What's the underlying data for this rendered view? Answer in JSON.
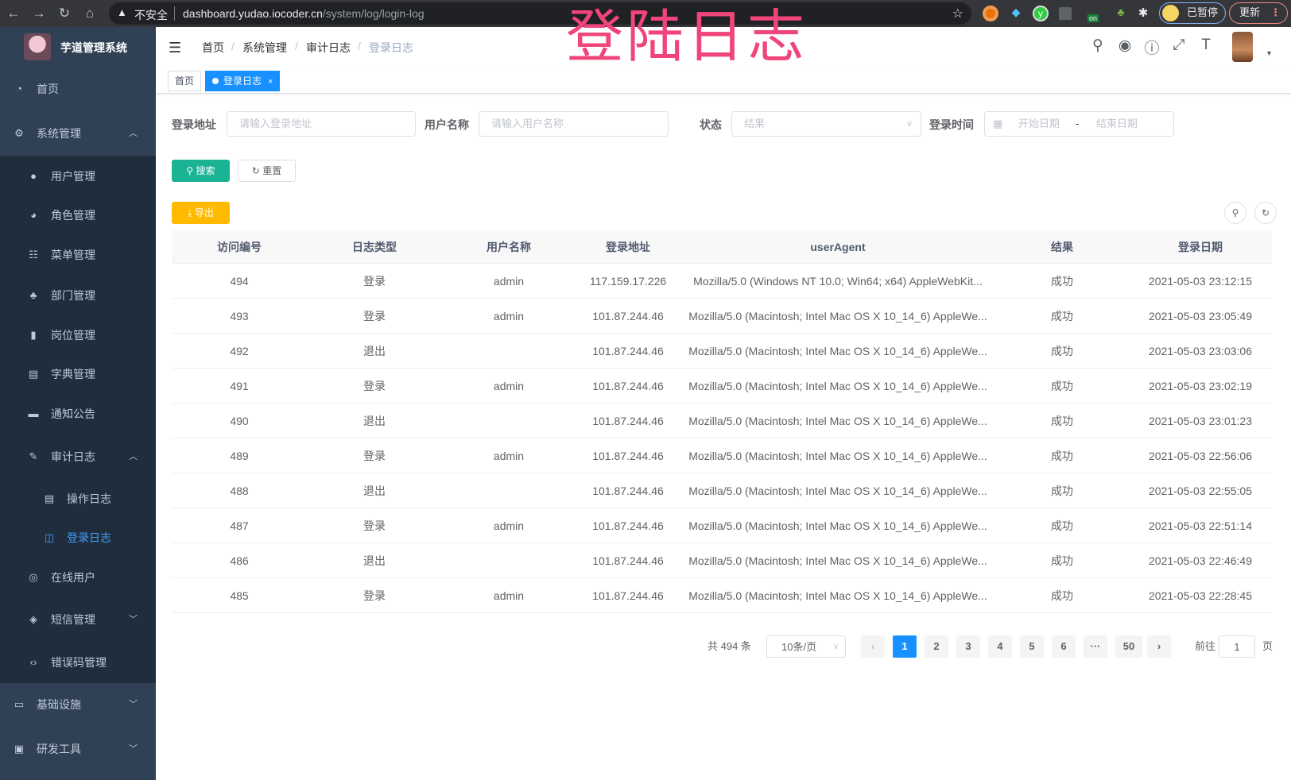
{
  "browser": {
    "insecure_label": "不安全",
    "url_host": "dashboard.yudao.iocoder.cn",
    "url_path": "/system/log/login-log",
    "profile_label": "已暂停",
    "update_label": "更新",
    "ext_badge": "on"
  },
  "sidebar": {
    "brand": "芋道管理系统",
    "items": [
      {
        "label": "首页",
        "icon": "dashboard-icon"
      },
      {
        "label": "系统管理",
        "icon": "gear-icon",
        "expanded": true
      },
      {
        "label": "用户管理",
        "icon": "user-icon"
      },
      {
        "label": "角色管理",
        "icon": "peoples-icon"
      },
      {
        "label": "菜单管理",
        "icon": "tree-table-icon"
      },
      {
        "label": "部门管理",
        "icon": "tree-icon"
      },
      {
        "label": "岗位管理",
        "icon": "post-icon"
      },
      {
        "label": "字典管理",
        "icon": "dict-icon"
      },
      {
        "label": "通知公告",
        "icon": "message-icon"
      },
      {
        "label": "审计日志",
        "icon": "log-icon",
        "expanded": true
      },
      {
        "label": "操作日志",
        "icon": "form-icon"
      },
      {
        "label": "登录日志",
        "icon": "logininfor-icon",
        "active": true
      },
      {
        "label": "在线用户",
        "icon": "online-icon"
      },
      {
        "label": "短信管理",
        "icon": "validcode-icon",
        "expanded": false
      },
      {
        "label": "错误码管理",
        "icon": "code-icon"
      },
      {
        "label": "基础设施",
        "icon": "monitor-icon",
        "expanded": false
      },
      {
        "label": "研发工具",
        "icon": "tool-icon",
        "expanded": false
      }
    ]
  },
  "navbar": {
    "breadcrumb": [
      "首页",
      "系统管理",
      "审计日志",
      "登录日志"
    ],
    "overlay_title": "登陆日志"
  },
  "tags": [
    {
      "label": "首页"
    },
    {
      "label": "登录日志",
      "active": true
    }
  ],
  "search": {
    "addr_label": "登录地址",
    "addr_placeholder": "请输入登录地址",
    "user_label": "用户名称",
    "user_placeholder": "请输入用户名称",
    "status_label": "状态",
    "status_placeholder": "结果",
    "time_label": "登录时间",
    "start_placeholder": "开始日期",
    "range_sep": "-",
    "end_placeholder": "结束日期",
    "search_btn": "搜索",
    "reset_btn": "重置",
    "export_btn": "导出"
  },
  "table": {
    "columns": [
      "访问编号",
      "日志类型",
      "用户名称",
      "登录地址",
      "userAgent",
      "结果",
      "登录日期"
    ],
    "rows": [
      [
        "494",
        "登录",
        "admin",
        "117.159.17.226",
        "Mozilla/5.0 (Windows NT 10.0; Win64; x64) AppleWebKit...",
        "成功",
        "2021-05-03 23:12:15"
      ],
      [
        "493",
        "登录",
        "admin",
        "101.87.244.46",
        "Mozilla/5.0 (Macintosh; Intel Mac OS X 10_14_6) AppleWe...",
        "成功",
        "2021-05-03 23:05:49"
      ],
      [
        "492",
        "退出",
        "",
        "101.87.244.46",
        "Mozilla/5.0 (Macintosh; Intel Mac OS X 10_14_6) AppleWe...",
        "成功",
        "2021-05-03 23:03:06"
      ],
      [
        "491",
        "登录",
        "admin",
        "101.87.244.46",
        "Mozilla/5.0 (Macintosh; Intel Mac OS X 10_14_6) AppleWe...",
        "成功",
        "2021-05-03 23:02:19"
      ],
      [
        "490",
        "退出",
        "",
        "101.87.244.46",
        "Mozilla/5.0 (Macintosh; Intel Mac OS X 10_14_6) AppleWe...",
        "成功",
        "2021-05-03 23:01:23"
      ],
      [
        "489",
        "登录",
        "admin",
        "101.87.244.46",
        "Mozilla/5.0 (Macintosh; Intel Mac OS X 10_14_6) AppleWe...",
        "成功",
        "2021-05-03 22:56:06"
      ],
      [
        "488",
        "退出",
        "",
        "101.87.244.46",
        "Mozilla/5.0 (Macintosh; Intel Mac OS X 10_14_6) AppleWe...",
        "成功",
        "2021-05-03 22:55:05"
      ],
      [
        "487",
        "登录",
        "admin",
        "101.87.244.46",
        "Mozilla/5.0 (Macintosh; Intel Mac OS X 10_14_6) AppleWe...",
        "成功",
        "2021-05-03 22:51:14"
      ],
      [
        "486",
        "退出",
        "",
        "101.87.244.46",
        "Mozilla/5.0 (Macintosh; Intel Mac OS X 10_14_6) AppleWe...",
        "成功",
        "2021-05-03 22:46:49"
      ],
      [
        "485",
        "登录",
        "admin",
        "101.87.244.46",
        "Mozilla/5.0 (Macintosh; Intel Mac OS X 10_14_6) AppleWe...",
        "成功",
        "2021-05-03 22:28:45"
      ]
    ]
  },
  "pagination": {
    "total": "共 494 条",
    "page_size": "10条/页",
    "pages": [
      "1",
      "2",
      "3",
      "4",
      "5",
      "6",
      "···",
      "50"
    ],
    "current": "1",
    "goto_label": "前往",
    "goto_value": "1",
    "page_unit": "页"
  },
  "colors": {
    "sidebar": "#304156",
    "submenu": "#1f2d3d",
    "active": "#409eff",
    "search_btn": "#1ab394",
    "export_btn": "#ffba00",
    "overlay": "#f0457a"
  }
}
